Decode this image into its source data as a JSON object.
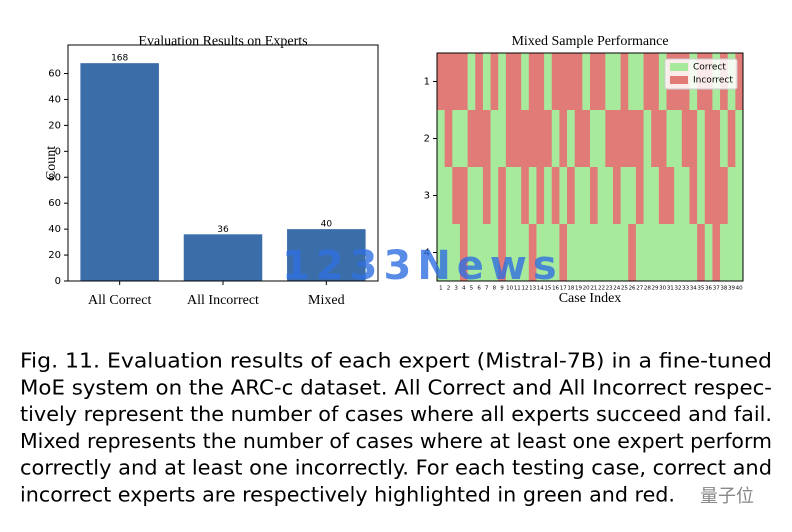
{
  "chart_data": [
    {
      "type": "bar",
      "title": "Evaluation Results on Experts",
      "ylabel": "Count",
      "categories": [
        "All Correct",
        "All Incorrect",
        "Mixed"
      ],
      "values": [
        168,
        36,
        40
      ],
      "color": "#3b6ea8",
      "ylim": [
        0,
        182
      ],
      "yticks": [
        0,
        20,
        40,
        60,
        {
          "value": 80,
          "label": "80"
        },
        {
          "value": 100,
          "label": "0"
        },
        {
          "value": 120,
          "label": "20"
        },
        {
          "value": 140,
          "label": "40"
        },
        {
          "value": 160,
          "label": "60"
        }
      ]
    },
    {
      "type": "heatmap",
      "title": "Mixed Sample Performance",
      "xlabel": "Case Index",
      "rows": [
        "1",
        "2",
        "3",
        "4"
      ],
      "x": [
        1,
        2,
        3,
        4,
        5,
        6,
        7,
        8,
        9,
        10,
        11,
        12,
        13,
        14,
        15,
        16,
        17,
        18,
        19,
        20,
        21,
        22,
        23,
        24,
        25,
        26,
        27,
        28,
        29,
        30,
        31,
        32,
        33,
        34,
        35,
        36,
        37,
        38,
        39,
        40
      ],
      "values": [
        [
          0,
          0,
          0,
          0,
          1,
          0,
          1,
          0,
          1,
          0,
          0,
          1,
          0,
          0,
          1,
          0,
          0,
          0,
          0,
          1,
          0,
          0,
          1,
          1,
          0,
          1,
          1,
          0,
          0,
          1,
          0,
          0,
          0,
          1,
          0,
          0,
          1,
          0,
          1,
          0
        ],
        [
          1,
          0,
          1,
          1,
          0,
          0,
          0,
          1,
          1,
          0,
          0,
          0,
          0,
          0,
          0,
          1,
          0,
          1,
          0,
          0,
          1,
          1,
          0,
          0,
          0,
          0,
          0,
          1,
          0,
          0,
          1,
          1,
          0,
          0,
          1,
          0,
          0,
          1,
          0,
          1
        ],
        [
          1,
          1,
          0,
          0,
          1,
          1,
          0,
          1,
          0,
          1,
          1,
          0,
          1,
          0,
          1,
          0,
          1,
          0,
          1,
          1,
          0,
          1,
          1,
          0,
          1,
          1,
          0,
          1,
          1,
          0,
          0,
          1,
          1,
          0,
          1,
          0,
          0,
          0,
          1,
          1
        ],
        [
          1,
          1,
          1,
          0,
          1,
          1,
          1,
          1,
          0,
          1,
          1,
          1,
          0,
          1,
          1,
          1,
          0,
          1,
          1,
          1,
          1,
          1,
          1,
          1,
          1,
          0,
          1,
          1,
          1,
          1,
          1,
          1,
          1,
          1,
          0,
          1,
          0,
          1,
          1,
          1
        ]
      ],
      "legend": [
        {
          "name": "Correct",
          "value": 1,
          "color": "#a8ea9c"
        },
        {
          "name": "Incorrect",
          "value": 0,
          "color": "#e07b78"
        }
      ],
      "legend_loc": "upper right"
    }
  ],
  "caption": [
    "Fig. 11. Evaluation results of each expert (Mistral-7B) in a fine-tuned",
    "MoE system on the ARC-c dataset. All Correct and All Incorrect respec-",
    "tively represent the number of cases where all experts succeed and fail.",
    "Mixed represents the number of cases where at least one expert perform",
    "correctly and at least one incorrectly. For each testing case, correct and",
    "incorrect experts are respectively highlighted in green and red."
  ],
  "watermarks": [
    "1233News",
    "量子位"
  ]
}
